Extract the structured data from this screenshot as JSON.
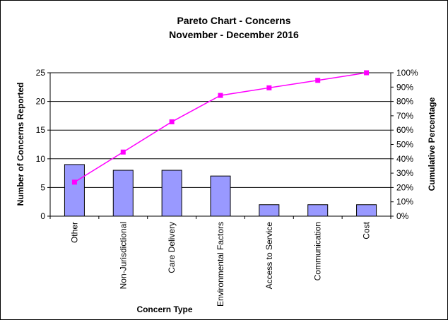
{
  "chart_data": {
    "type": "bar",
    "title": "Pareto Chart - Concerns",
    "subtitle": "November - December 2016",
    "xlabel": "Concern Type",
    "ylabel": "Number of Concerns Reported",
    "y2label": "Cumulative Percentage",
    "categories": [
      "Other",
      "Non-Jurisdictional",
      "Care Delivery",
      "Environmental Factors",
      "Access to Service",
      "Communication",
      "Cost"
    ],
    "series": [
      {
        "type": "bar",
        "values": [
          9,
          8,
          8,
          7,
          2,
          2,
          2
        ],
        "color": "#9999ff"
      },
      {
        "type": "line",
        "axis": "right",
        "values": [
          23.7,
          44.7,
          65.8,
          84.2,
          89.5,
          94.7,
          100
        ],
        "color": "#ff00ff",
        "marker": "square"
      }
    ],
    "ylim": [
      0,
      25
    ],
    "yticks": [
      0,
      5,
      10,
      15,
      20,
      25
    ],
    "y2lim": [
      0,
      100
    ],
    "y2ticks": [
      "0%",
      "10%",
      "20%",
      "30%",
      "40%",
      "50%",
      "60%",
      "70%",
      "80%",
      "90%",
      "100%"
    ],
    "grid": true,
    "legend": "none"
  }
}
